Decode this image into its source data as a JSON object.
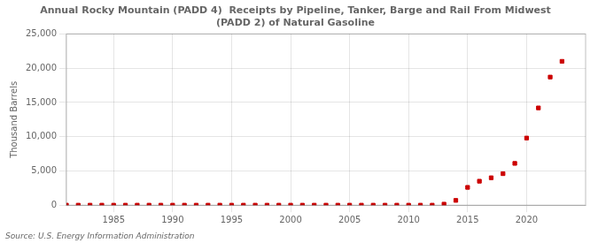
{
  "chart_data": {
    "type": "scatter",
    "title": "Annual Rocky Mountain (PADD 4)  Receipts by Pipeline, Tanker, Barge and Rail From Midwest\n(PADD 2) of Natural Gasoline",
    "ylabel": "Thousand Barrels",
    "annotations": [
      "Source: U.S. Energy Information Administration"
    ],
    "x": [
      1981,
      1982,
      1983,
      1984,
      1985,
      1986,
      1987,
      1988,
      1989,
      1990,
      1991,
      1992,
      1993,
      1994,
      1995,
      1996,
      1997,
      1998,
      1999,
      2000,
      2001,
      2002,
      2003,
      2004,
      2005,
      2006,
      2007,
      2008,
      2009,
      2010,
      2011,
      2012,
      2013,
      2014,
      2015,
      2016,
      2017,
      2018,
      2019,
      2020,
      2021,
      2022,
      2023
    ],
    "values": [
      0,
      0,
      0,
      0,
      0,
      0,
      0,
      0,
      0,
      0,
      0,
      0,
      0,
      0,
      0,
      0,
      0,
      0,
      0,
      0,
      0,
      0,
      0,
      0,
      0,
      0,
      0,
      0,
      0,
      0,
      0,
      0,
      150,
      700,
      2600,
      3500,
      4000,
      4600,
      6100,
      9800,
      14200,
      18700,
      21000
    ],
    "color": "#cc0000",
    "marker": "square",
    "xlim": [
      1981,
      2025
    ],
    "xticks": [
      1985,
      1990,
      1995,
      2000,
      2005,
      2010,
      2015,
      2020
    ],
    "ylim": [
      0,
      25000
    ],
    "yticks": [
      0,
      {
        "value": 5000,
        "label": "5,000"
      },
      {
        "value": 10000,
        "label": "10,000"
      },
      {
        "value": 15000,
        "label": "15,000"
      },
      {
        "value": 20000,
        "label": "20,000"
      },
      {
        "value": 25000,
        "label": "25,000"
      }
    ],
    "grid": true
  }
}
